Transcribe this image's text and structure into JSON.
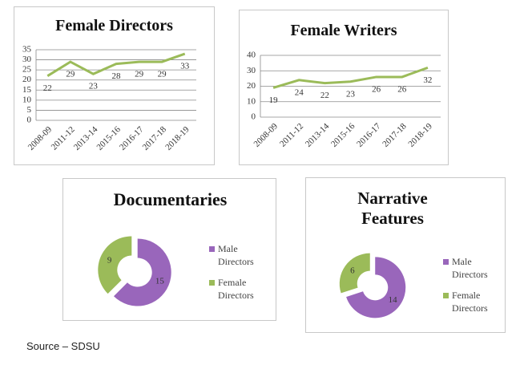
{
  "chart_data": [
    {
      "type": "line",
      "title": "Female Directors",
      "categories": [
        "2008-09",
        "2011-12",
        "2013-14",
        "2015-16",
        "2016-17",
        "2017-18",
        "2018-19"
      ],
      "values": [
        22,
        29,
        23,
        28,
        29,
        29,
        33
      ],
      "color": "#9bbb59",
      "ylim": [
        0,
        35
      ],
      "yticks": [
        0,
        5,
        10,
        15,
        20,
        25,
        30,
        35
      ],
      "grid": true
    },
    {
      "type": "line",
      "title": "Female Writers",
      "categories": [
        "2008-09",
        "2011-12",
        "2013-14",
        "2015-16",
        "2016-17",
        "2017-18",
        "2018-19"
      ],
      "values": [
        19,
        24,
        22,
        23,
        26,
        26,
        32
      ],
      "color": "#9bbb59",
      "ylim": [
        0,
        40
      ],
      "yticks": [
        0,
        10,
        20,
        30,
        40
      ],
      "grid": true
    },
    {
      "type": "pie",
      "title": "Documentaries",
      "categories": [
        "Male Directors",
        "Female Directors"
      ],
      "values": [
        15,
        9
      ],
      "colors": [
        "#9966bb",
        "#9bbb59"
      ]
    },
    {
      "type": "pie",
      "title": "Narrative Features",
      "categories": [
        "Male Directors",
        "Female Directors"
      ],
      "values": [
        14,
        6
      ],
      "colors": [
        "#9966bb",
        "#9bbb59"
      ]
    }
  ],
  "source": "Source – SDSU"
}
